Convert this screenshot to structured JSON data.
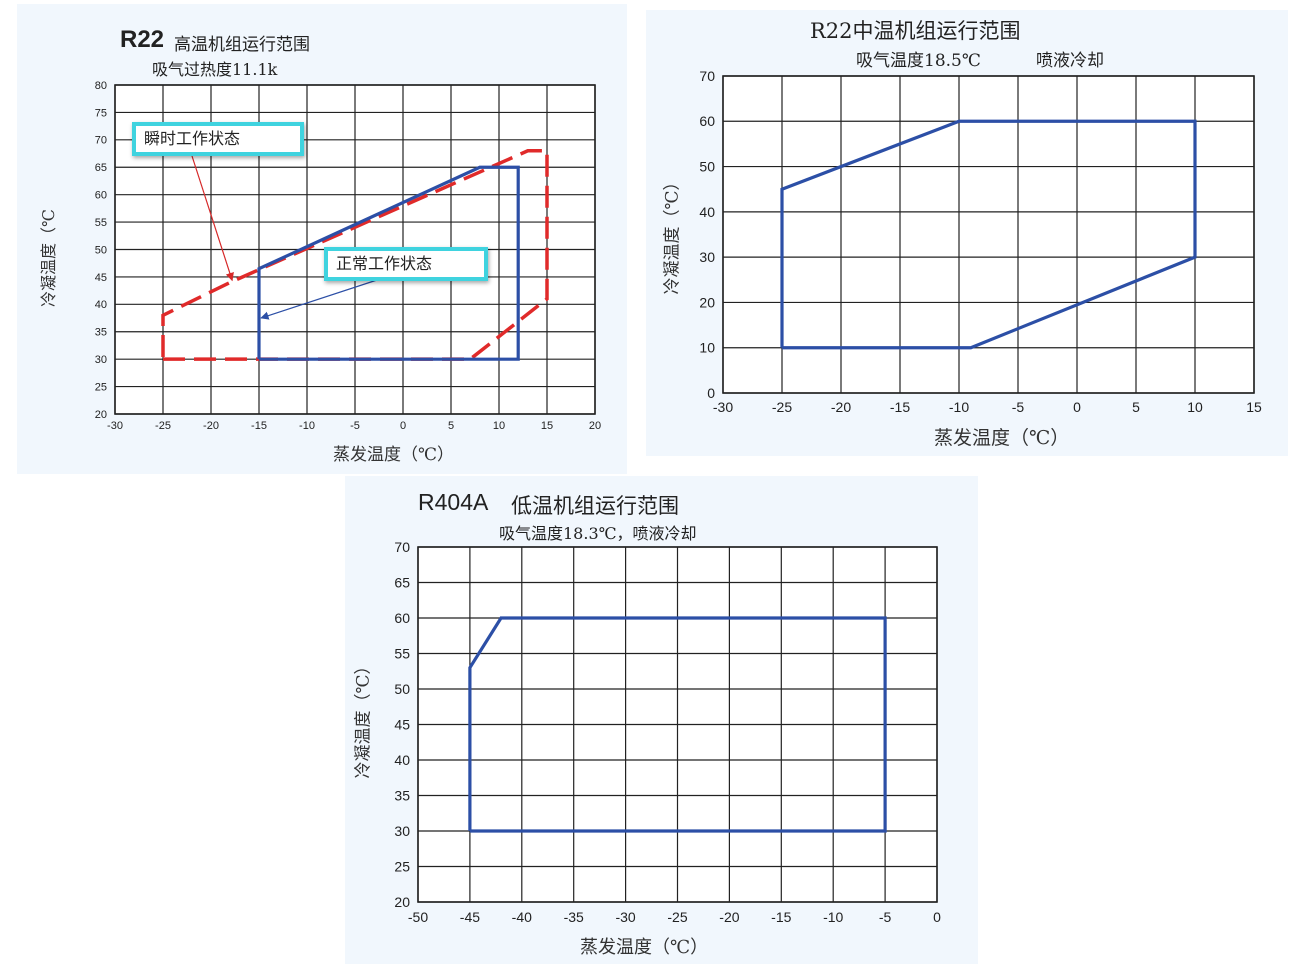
{
  "chart_data": [
    {
      "type": "line",
      "title_main": "R22",
      "title_rest": "高温机组运行范围",
      "subtitle": "吸气过热度11.1k",
      "xlabel": "蒸发温度（℃）",
      "ylabel": "冷凝温度（℃",
      "xlim": [
        -30,
        20
      ],
      "ylim": [
        20,
        80
      ],
      "xticks": [
        "-30",
        "-25",
        "-20",
        "-15",
        "-10",
        "-5",
        "0",
        "5",
        "10",
        "15",
        "20"
      ],
      "yticks": [
        "20",
        "25",
        "30",
        "35",
        "40",
        "45",
        "50",
        "55",
        "60",
        "65",
        "70",
        "75",
        "80"
      ],
      "grid": true,
      "series": [
        {
          "style": "dashed",
          "color": "#e02a2a",
          "points": [
            [
              -25,
              30
            ],
            [
              7,
              30
            ],
            [
              15,
              41
            ],
            [
              15,
              68
            ],
            [
              13,
              68
            ],
            [
              -18,
              44
            ],
            [
              -25,
              38
            ],
            [
              -25,
              30
            ]
          ]
        },
        {
          "style": "solid",
          "color": "#2c4fa6",
          "points": [
            [
              -15,
              30
            ],
            [
              12,
              30
            ],
            [
              12,
              65
            ],
            [
              8,
              65
            ],
            [
              -15,
              46.5
            ],
            [
              -15,
              30
            ]
          ]
        }
      ],
      "annotations": [
        {
          "text": "瞬时工作状态",
          "target": [
            -18,
            44
          ]
        },
        {
          "text": "正常工作状态",
          "target": [
            -15,
            37.5
          ]
        }
      ]
    },
    {
      "type": "line",
      "title": "R22中温机组运行范围",
      "subtitle_a": "吸气温度18.5℃",
      "subtitle_b": "喷液冷却",
      "xlabel": "蒸发温度（℃）",
      "ylabel": "冷凝温度（℃）",
      "xlim": [
        -30,
        15
      ],
      "ylim": [
        0,
        70
      ],
      "xticks": [
        "-30",
        "-25",
        "-20",
        "-15",
        "-10",
        "-5",
        "0",
        "5",
        "10",
        "15"
      ],
      "yticks": [
        "0",
        "10",
        "20",
        "30",
        "40",
        "50",
        "60",
        "70"
      ],
      "grid": true,
      "series": [
        {
          "style": "solid",
          "color": "#2c4fa6",
          "points": [
            [
              -25,
              10
            ],
            [
              -9,
              10
            ],
            [
              10,
              30
            ],
            [
              10,
              60
            ],
            [
              -10,
              60
            ],
            [
              -25,
              45
            ],
            [
              -25,
              10
            ]
          ]
        }
      ]
    },
    {
      "type": "line",
      "title_main": "R404A",
      "title_rest": "低温机组运行范围",
      "subtitle": "吸气温度18.3℃，喷液冷却",
      "xlabel": "蒸发温度（℃）",
      "ylabel": "冷凝温度（℃）",
      "xlim": [
        -50,
        0
      ],
      "ylim": [
        20,
        70
      ],
      "xticks": [
        "-50",
        "-45",
        "-40",
        "-35",
        "-30",
        "-25",
        "-20",
        "-15",
        "-10",
        "-5",
        "0"
      ],
      "yticks": [
        "20",
        "25",
        "30",
        "35",
        "40",
        "45",
        "50",
        "55",
        "60",
        "65",
        "70"
      ],
      "grid": true,
      "series": [
        {
          "style": "solid",
          "color": "#2c4fa6",
          "points": [
            [
              -45,
              30
            ],
            [
              -5,
              30
            ],
            [
              -5,
              60
            ],
            [
              -42,
              60
            ],
            [
              -45,
              53
            ],
            [
              -45,
              30
            ]
          ]
        }
      ]
    }
  ]
}
